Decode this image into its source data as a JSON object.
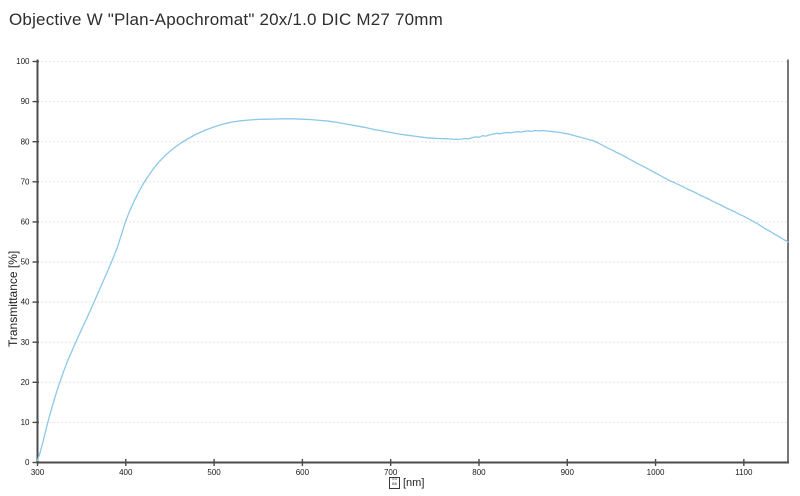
{
  "title": "Objective W \"Plan-Apochromat\" 20x/1.0 DIC M27 70mm",
  "chart_data": {
    "type": "line",
    "title": "Objective W \"Plan-Apochromat\" 20x/1.0 DIC M27 70mm",
    "ylabel": "Transmittance [%]",
    "xlabel_unit": "[nm]",
    "xlabel_box_digits": [
      "03",
      "BB"
    ],
    "xlim": [
      300,
      1150
    ],
    "ylim": [
      0,
      100
    ],
    "x_ticks": [
      300,
      400,
      500,
      600,
      700,
      800,
      900,
      1000,
      1100
    ],
    "y_ticks": [
      0,
      10,
      20,
      30,
      40,
      50,
      60,
      70,
      80,
      90,
      100
    ],
    "grid": "horizontal-dotted",
    "legend": "none",
    "grid_color": "#c9c9c9",
    "axis_color": "#4b4b4b",
    "tick_label_color": "#1a1a1a",
    "series": [
      {
        "name": "transmittance",
        "color": "#8cc8e8",
        "points": [
          [
            300,
            0.5
          ],
          [
            303,
            2.5
          ],
          [
            306,
            5
          ],
          [
            310,
            8.5
          ],
          [
            314,
            12
          ],
          [
            318,
            15
          ],
          [
            322,
            17.8
          ],
          [
            326,
            20.5
          ],
          [
            330,
            23
          ],
          [
            335,
            25.8
          ],
          [
            340,
            28.3
          ],
          [
            345,
            30.8
          ],
          [
            350,
            33.2
          ],
          [
            355,
            35.6
          ],
          [
            360,
            38
          ],
          [
            365,
            40.5
          ],
          [
            370,
            43
          ],
          [
            375,
            45.5
          ],
          [
            380,
            48
          ],
          [
            385,
            50.6
          ],
          [
            390,
            53.4
          ],
          [
            395,
            56.8
          ],
          [
            400,
            60.3
          ],
          [
            405,
            63
          ],
          [
            410,
            65.4
          ],
          [
            415,
            67.6
          ],
          [
            420,
            69.6
          ],
          [
            425,
            71.3
          ],
          [
            430,
            72.9
          ],
          [
            435,
            74.3
          ],
          [
            440,
            75.5
          ],
          [
            445,
            76.6
          ],
          [
            450,
            77.6
          ],
          [
            455,
            78.5
          ],
          [
            460,
            79.3
          ],
          [
            465,
            80
          ],
          [
            470,
            80.7
          ],
          [
            475,
            81.3
          ],
          [
            480,
            81.9
          ],
          [
            485,
            82.4
          ],
          [
            490,
            82.9
          ],
          [
            495,
            83.3
          ],
          [
            500,
            83.7
          ],
          [
            510,
            84.4
          ],
          [
            520,
            84.9
          ],
          [
            530,
            85.2
          ],
          [
            540,
            85.4
          ],
          [
            550,
            85.55
          ],
          [
            560,
            85.6
          ],
          [
            570,
            85.65
          ],
          [
            580,
            85.7
          ],
          [
            590,
            85.7
          ],
          [
            600,
            85.6
          ],
          [
            610,
            85.5
          ],
          [
            620,
            85.3
          ],
          [
            630,
            85.1
          ],
          [
            640,
            84.8
          ],
          [
            650,
            84.4
          ],
          [
            660,
            84
          ],
          [
            670,
            83.6
          ],
          [
            680,
            83.1
          ],
          [
            690,
            82.7
          ],
          [
            700,
            82.3
          ],
          [
            710,
            81.9
          ],
          [
            720,
            81.6
          ],
          [
            730,
            81.3
          ],
          [
            740,
            81
          ],
          [
            750,
            80.85
          ],
          [
            755,
            80.8
          ],
          [
            760,
            80.75
          ],
          [
            765,
            80.7
          ],
          [
            770,
            80.65
          ],
          [
            775,
            80.6
          ],
          [
            780,
            80.65
          ],
          [
            784,
            80.8
          ],
          [
            788,
            80.7
          ],
          [
            792,
            81
          ],
          [
            796,
            81.2
          ],
          [
            800,
            81.1
          ],
          [
            804,
            81.5
          ],
          [
            808,
            81.4
          ],
          [
            812,
            81.7
          ],
          [
            816,
            81.9
          ],
          [
            820,
            82.1
          ],
          [
            824,
            82
          ],
          [
            828,
            82.2
          ],
          [
            832,
            82.3
          ],
          [
            836,
            82.2
          ],
          [
            840,
            82.4
          ],
          [
            844,
            82.5
          ],
          [
            848,
            82.4
          ],
          [
            852,
            82.6
          ],
          [
            856,
            82.7
          ],
          [
            860,
            82.6
          ],
          [
            864,
            82.8
          ],
          [
            868,
            82.7
          ],
          [
            872,
            82.8
          ],
          [
            876,
            82.7
          ],
          [
            880,
            82.6
          ],
          [
            884,
            82.5
          ],
          [
            888,
            82.4
          ],
          [
            892,
            82.3
          ],
          [
            896,
            82.1
          ],
          [
            900,
            82
          ],
          [
            905,
            81.7
          ],
          [
            910,
            81.4
          ],
          [
            915,
            81.1
          ],
          [
            920,
            80.8
          ],
          [
            925,
            80.5
          ],
          [
            930,
            80.2
          ],
          [
            935,
            79.7
          ],
          [
            940,
            79.1
          ],
          [
            945,
            78.5
          ],
          [
            950,
            78
          ],
          [
            955,
            77.4
          ],
          [
            960,
            76.9
          ],
          [
            965,
            76.3
          ],
          [
            970,
            75.7
          ],
          [
            975,
            75.1
          ],
          [
            980,
            74.5
          ],
          [
            985,
            74
          ],
          [
            990,
            73.4
          ],
          [
            995,
            72.8
          ],
          [
            1000,
            72.2
          ],
          [
            1005,
            71.6
          ],
          [
            1010,
            71
          ],
          [
            1015,
            70.4
          ],
          [
            1020,
            69.9
          ],
          [
            1025,
            69.4
          ],
          [
            1030,
            68.9
          ],
          [
            1035,
            68.3
          ],
          [
            1040,
            67.8
          ],
          [
            1045,
            67.3
          ],
          [
            1050,
            66.7
          ],
          [
            1055,
            66.2
          ],
          [
            1060,
            65.7
          ],
          [
            1065,
            65.1
          ],
          [
            1070,
            64.6
          ],
          [
            1075,
            64.1
          ],
          [
            1080,
            63.5
          ],
          [
            1085,
            63
          ],
          [
            1090,
            62.5
          ],
          [
            1095,
            61.9
          ],
          [
            1100,
            61.4
          ],
          [
            1105,
            60.8
          ],
          [
            1110,
            60.2
          ],
          [
            1115,
            59.6
          ],
          [
            1120,
            58.9
          ],
          [
            1125,
            58.2
          ],
          [
            1130,
            57.6
          ],
          [
            1135,
            56.9
          ],
          [
            1140,
            56.3
          ],
          [
            1145,
            55.6
          ],
          [
            1150,
            55
          ]
        ]
      }
    ]
  }
}
